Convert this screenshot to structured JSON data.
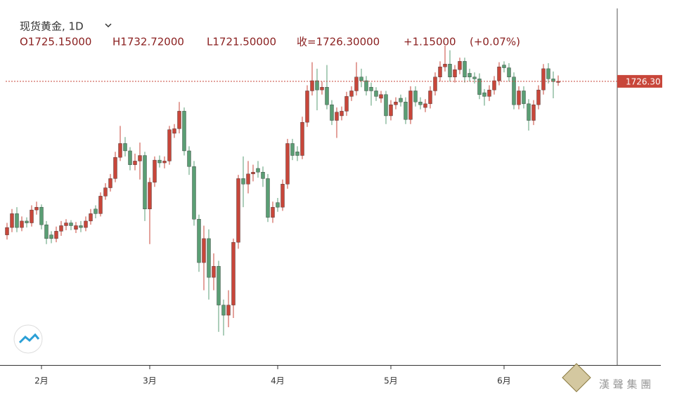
{
  "chart_data": {
    "type": "candlestick",
    "title": "现货黄金, 1D",
    "header": {
      "open": "O1725.15000",
      "high": "H1732.72000",
      "low": "L1721.50000",
      "close": "收=1726.30000",
      "change": "+1.15000",
      "change_pct": "(+0.07%)"
    },
    "up_color": "#c8463a",
    "down_color": "#5a9e74",
    "open": [
      1560,
      1568,
      1583,
      1568,
      1575,
      1573,
      1587,
      1590,
      1571,
      1560,
      1556,
      1564,
      1570,
      1573,
      1566,
      1570,
      1568,
      1575,
      1588,
      1583,
      1602,
      1611,
      1621,
      1644,
      1659,
      1651,
      1636,
      1640,
      1646,
      1588,
      1617,
      1641,
      1638,
      1640,
      1670,
      1675,
      1694,
      1651,
      1634,
      1577,
      1530,
      1556,
      1514,
      1526,
      1484,
      1473,
      1484,
      1552,
      1621,
      1615,
      1626,
      1632,
      1628,
      1621,
      1579,
      1595,
      1590,
      1615,
      1659,
      1650,
      1646,
      1682,
      1716,
      1727,
      1717,
      1720,
      1701,
      1684,
      1689,
      1694,
      1710,
      1716,
      1731,
      1727,
      1720,
      1716,
      1708,
      1712,
      1689,
      1701,
      1708,
      1704,
      1685,
      1716,
      1704,
      1698,
      1702,
      1716,
      1731,
      1742,
      1745,
      1731,
      1739,
      1748,
      1735,
      1731,
      1729,
      1714,
      1710,
      1717,
      1727,
      1744,
      1741,
      1731,
      1701,
      1716,
      1702,
      1684,
      1701,
      1717,
      1740,
      1729,
      1725.15
    ],
    "high": [
      1573,
      1588,
      1590,
      1580,
      1579,
      1592,
      1596,
      1593,
      1575,
      1564,
      1569,
      1575,
      1577,
      1576,
      1574,
      1575,
      1580,
      1588,
      1592,
      1606,
      1616,
      1626,
      1650,
      1678,
      1666,
      1655,
      1648,
      1660,
      1650,
      1622,
      1645,
      1646,
      1645,
      1678,
      1680,
      1704,
      1698,
      1656,
      1640,
      1582,
      1570,
      1566,
      1540,
      1532,
      1490,
      1500,
      1556,
      1625,
      1645,
      1640,
      1636,
      1640,
      1634,
      1626,
      1596,
      1600,
      1620,
      1664,
      1664,
      1656,
      1688,
      1722,
      1747,
      1740,
      1726,
      1744,
      1706,
      1698,
      1699,
      1715,
      1721,
      1747,
      1740,
      1732,
      1725,
      1720,
      1716,
      1716,
      1706,
      1709,
      1712,
      1709,
      1721,
      1721,
      1709,
      1707,
      1721,
      1736,
      1748,
      1765,
      1760,
      1744,
      1752,
      1752,
      1740,
      1736,
      1735,
      1718,
      1722,
      1732,
      1747,
      1748,
      1746,
      1736,
      1721,
      1721,
      1707,
      1706,
      1722,
      1745,
      1746,
      1737,
      1732.72
    ],
    "low": [
      1555,
      1563,
      1563,
      1564,
      1568,
      1569,
      1582,
      1566,
      1550,
      1551,
      1552,
      1559,
      1565,
      1565,
      1562,
      1563,
      1564,
      1571,
      1578,
      1580,
      1598,
      1607,
      1617,
      1640,
      1645,
      1630,
      1630,
      1620,
      1575,
      1550,
      1612,
      1633,
      1632,
      1636,
      1665,
      1670,
      1646,
      1625,
      1570,
      1520,
      1500,
      1490,
      1500,
      1455,
      1451,
      1460,
      1470,
      1545,
      1590,
      1605,
      1618,
      1622,
      1612,
      1574,
      1573,
      1585,
      1586,
      1610,
      1641,
      1640,
      1642,
      1677,
      1711,
      1695,
      1712,
      1696,
      1679,
      1665,
      1684,
      1689,
      1705,
      1711,
      1720,
      1711,
      1700,
      1705,
      1703,
      1680,
      1684,
      1696,
      1699,
      1680,
      1680,
      1699,
      1696,
      1693,
      1697,
      1711,
      1726,
      1737,
      1726,
      1725,
      1734,
      1725,
      1726,
      1724,
      1707,
      1700,
      1705,
      1712,
      1722,
      1736,
      1726,
      1696,
      1696,
      1697,
      1673,
      1679,
      1696,
      1712,
      1724,
      1708,
      1721.5
    ],
    "close": [
      1568,
      1583,
      1568,
      1575,
      1573,
      1587,
      1590,
      1571,
      1556,
      1556,
      1564,
      1570,
      1573,
      1570,
      1570,
      1568,
      1575,
      1583,
      1583,
      1602,
      1611,
      1621,
      1644,
      1659,
      1651,
      1636,
      1640,
      1646,
      1588,
      1617,
      1641,
      1638,
      1640,
      1674,
      1675,
      1694,
      1651,
      1634,
      1577,
      1530,
      1556,
      1514,
      1526,
      1484,
      1473,
      1484,
      1552,
      1621,
      1615,
      1626,
      1628,
      1628,
      1621,
      1579,
      1590,
      1590,
      1615,
      1659,
      1646,
      1646,
      1682,
      1716,
      1727,
      1717,
      1720,
      1701,
      1684,
      1693,
      1694,
      1710,
      1716,
      1731,
      1727,
      1716,
      1716,
      1710,
      1712,
      1689,
      1701,
      1704,
      1704,
      1685,
      1716,
      1704,
      1701,
      1702,
      1716,
      1731,
      1742,
      1745,
      1731,
      1739,
      1748,
      1731,
      1731,
      1729,
      1712,
      1710,
      1717,
      1727,
      1742,
      1741,
      1731,
      1701,
      1716,
      1702,
      1684,
      1701,
      1717,
      1740,
      1729,
      1726,
      1726.3
    ],
    "xticks": [
      {
        "value": 7,
        "label": "2月"
      },
      {
        "value": 29,
        "label": "3月"
      },
      {
        "value": 55,
        "label": "4月"
      },
      {
        "value": 78,
        "label": "5月"
      },
      {
        "value": 101,
        "label": "6月"
      }
    ],
    "price_line": {
      "value": 1726.3,
      "label": "1726.30"
    },
    "watermark": "漢 聲 集 團"
  }
}
